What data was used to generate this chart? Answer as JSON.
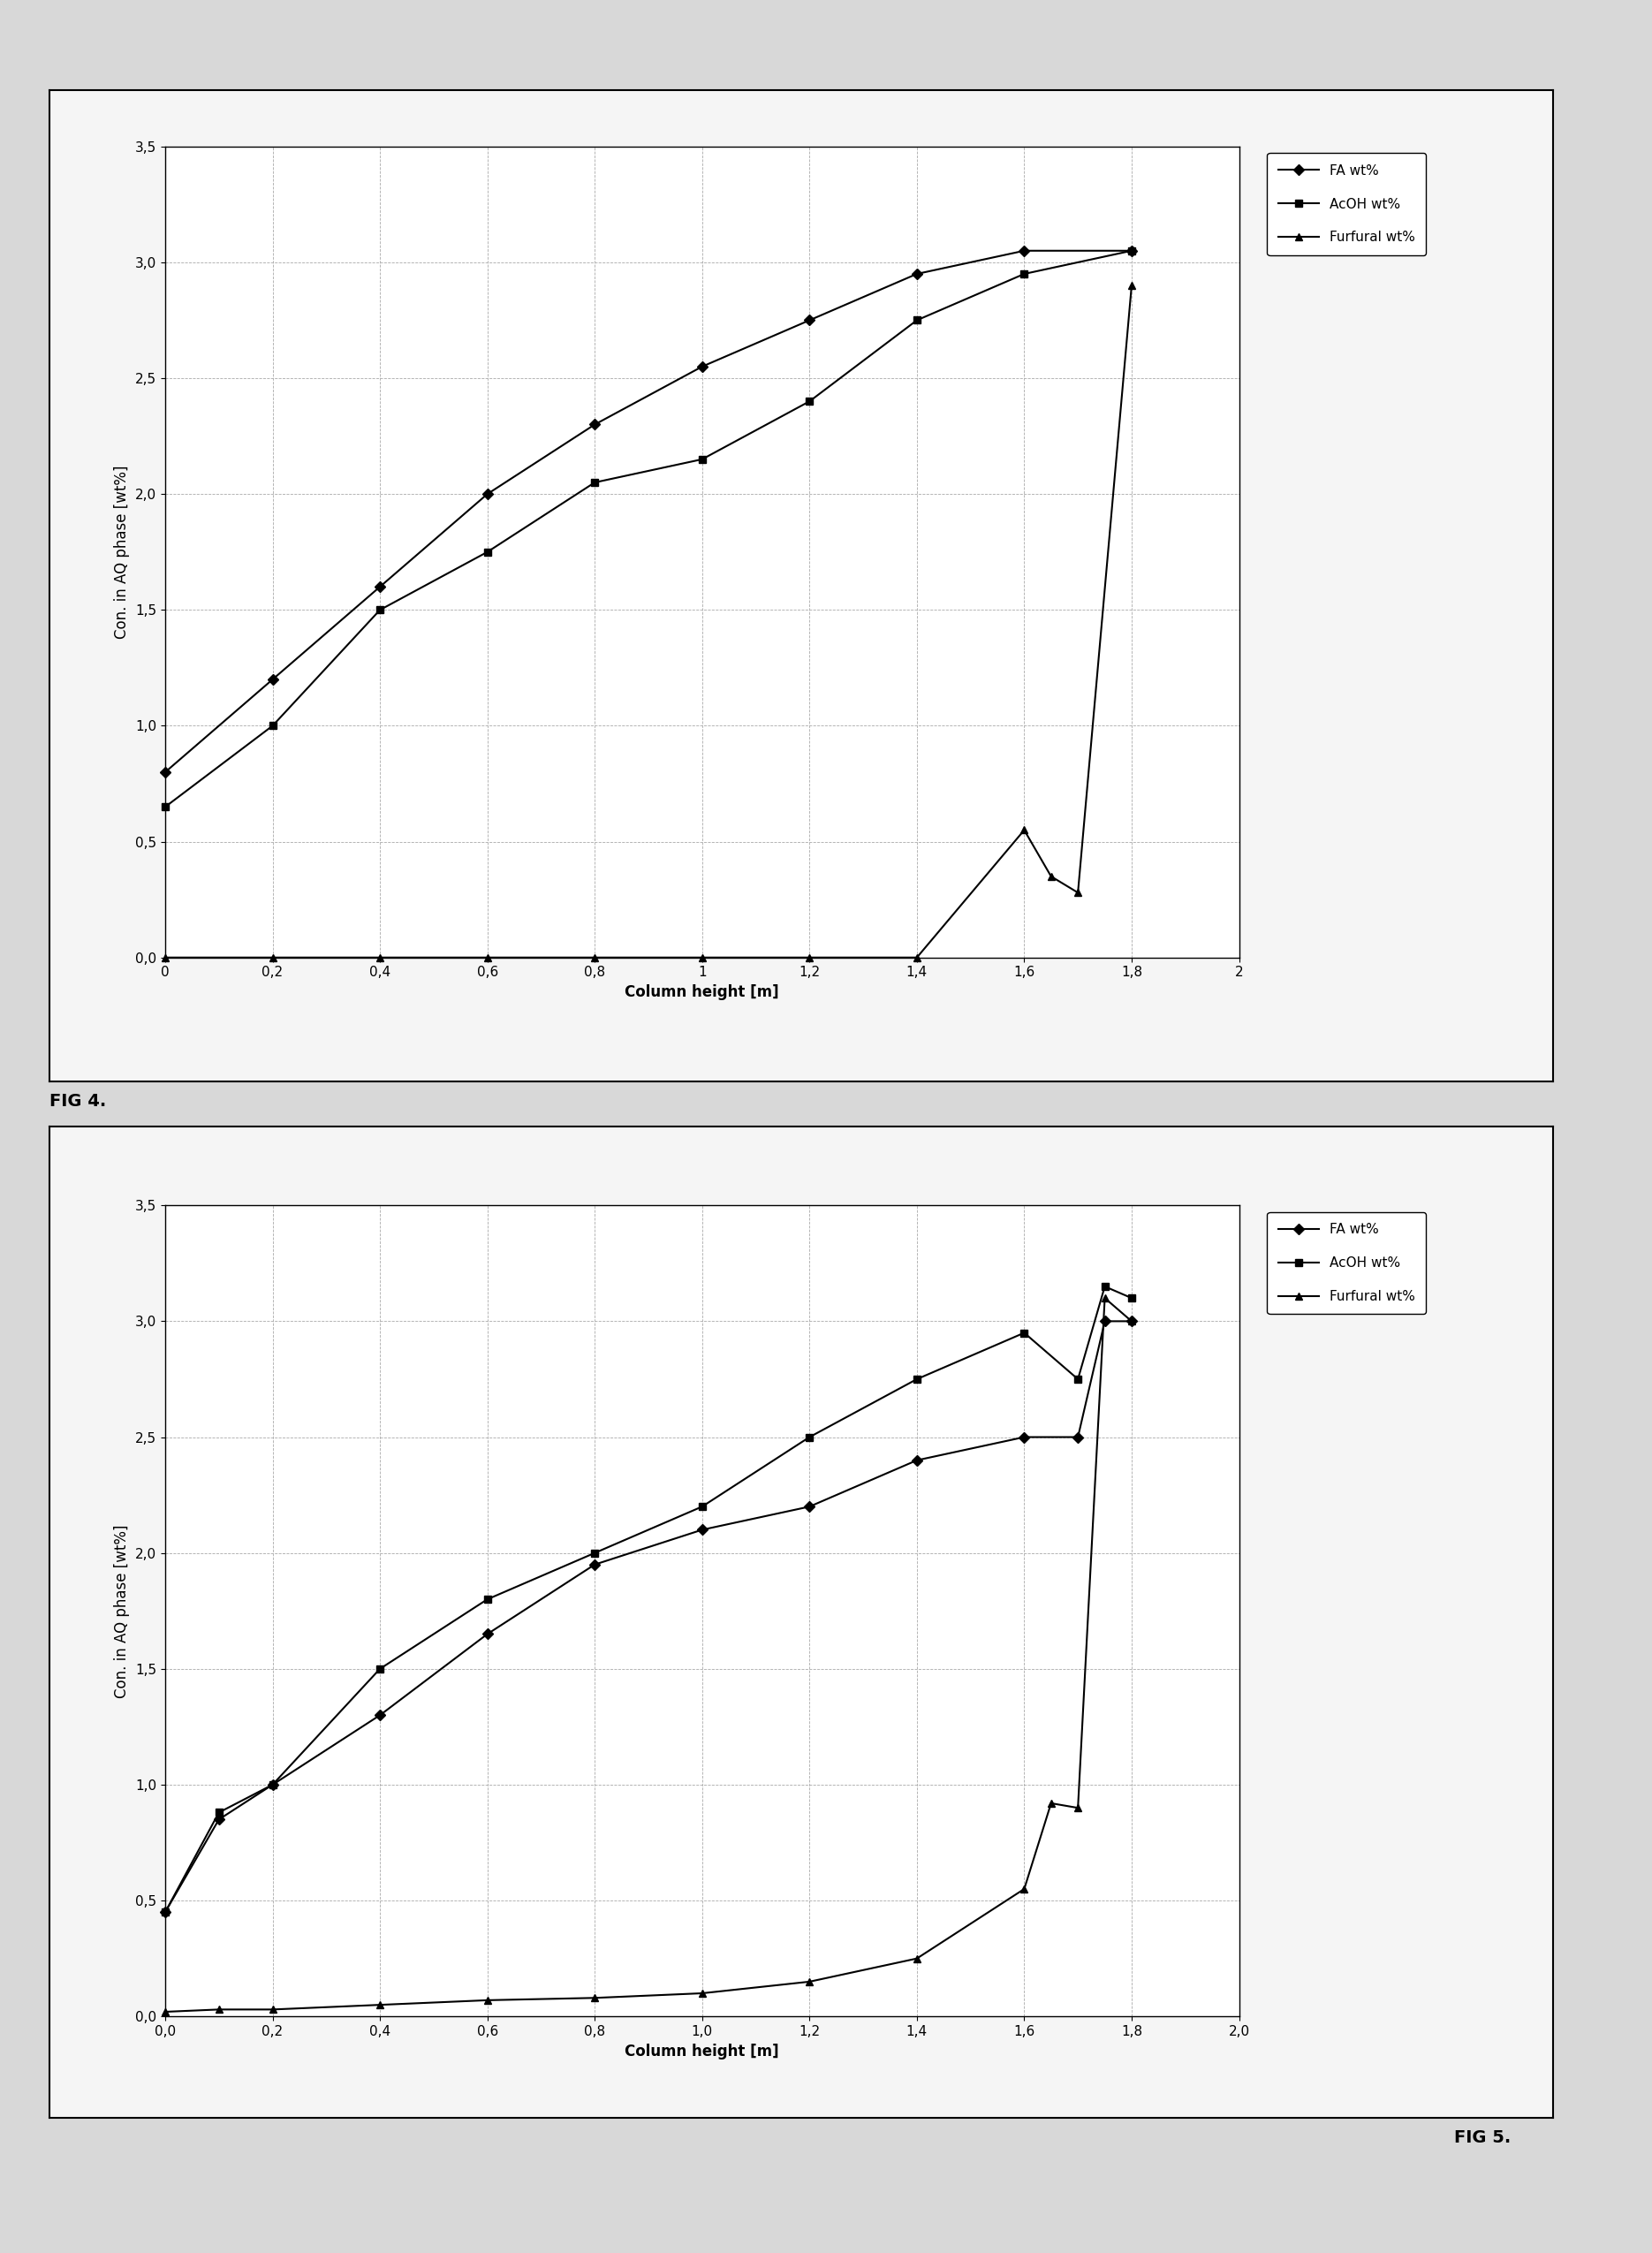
{
  "fig4": {
    "xlabel": "Column height [m]",
    "ylabel": "Con. in AQ phase [wt%]",
    "xlim": [
      0,
      2
    ],
    "ylim": [
      0,
      3.5
    ],
    "xticks": [
      0,
      0.2,
      0.4,
      0.6,
      0.8,
      1.0,
      1.2,
      1.4,
      1.6,
      1.8,
      2.0
    ],
    "yticks": [
      0.0,
      0.5,
      1.0,
      1.5,
      2.0,
      2.5,
      3.0,
      3.5
    ],
    "ytick_labels": [
      "0,0",
      "0,5",
      "1,0",
      "1,5",
      "2,0",
      "2,5",
      "3,0",
      "3,5"
    ],
    "xtick_labels": [
      "0",
      "0,2",
      "0,4",
      "0,6",
      "0,8",
      "1",
      "1,2",
      "1,4",
      "1,6",
      "1,8",
      "2"
    ],
    "FA": {
      "x": [
        0,
        0.2,
        0.4,
        0.6,
        0.8,
        1.0,
        1.2,
        1.4,
        1.6,
        1.8
      ],
      "y": [
        0.8,
        1.2,
        1.6,
        2.0,
        2.3,
        2.55,
        2.75,
        2.95,
        3.05,
        3.05
      ],
      "label": "FA wt%",
      "marker": "D"
    },
    "AcOH": {
      "x": [
        0,
        0.2,
        0.4,
        0.6,
        0.8,
        1.0,
        1.2,
        1.4,
        1.6,
        1.8
      ],
      "y": [
        0.65,
        1.0,
        1.5,
        1.75,
        2.05,
        2.15,
        2.4,
        2.75,
        2.95,
        3.05
      ],
      "label": "AcOH wt%",
      "marker": "s"
    },
    "Furfural": {
      "x": [
        0,
        0.2,
        0.4,
        0.6,
        0.8,
        1.0,
        1.2,
        1.4,
        1.6,
        1.65,
        1.7,
        1.8
      ],
      "y": [
        0.0,
        0.0,
        0.0,
        0.0,
        0.0,
        0.0,
        0.0,
        0.0,
        0.55,
        0.35,
        0.28,
        2.9
      ],
      "label": "Furfural wt%",
      "marker": "^"
    }
  },
  "fig5": {
    "xlabel": "Column height [m]",
    "ylabel": "Con. in AQ phase [wt%]",
    "xlim": [
      0.0,
      2.0
    ],
    "ylim": [
      0.0,
      3.5
    ],
    "xticks": [
      0.0,
      0.2,
      0.4,
      0.6,
      0.8,
      1.0,
      1.2,
      1.4,
      1.6,
      1.8,
      2.0
    ],
    "yticks": [
      0.0,
      0.5,
      1.0,
      1.5,
      2.0,
      2.5,
      3.0,
      3.5
    ],
    "ytick_labels": [
      "0,0",
      "0,5",
      "1,0",
      "1,5",
      "2,0",
      "2,5",
      "3,0",
      "3,5"
    ],
    "xtick_labels": [
      "0,0",
      "0,2",
      "0,4",
      "0,6",
      "0,8",
      "1,0",
      "1,2",
      "1,4",
      "1,6",
      "1,8",
      "2,0"
    ],
    "FA": {
      "x": [
        0,
        0.1,
        0.2,
        0.4,
        0.6,
        0.8,
        1.0,
        1.2,
        1.4,
        1.6,
        1.7,
        1.75,
        1.8
      ],
      "y": [
        0.45,
        0.85,
        1.0,
        1.3,
        1.65,
        1.95,
        2.1,
        2.2,
        2.4,
        2.5,
        2.5,
        3.0,
        3.0
      ],
      "label": "FA wt%",
      "marker": "D"
    },
    "AcOH": {
      "x": [
        0,
        0.1,
        0.2,
        0.4,
        0.6,
        0.8,
        1.0,
        1.2,
        1.4,
        1.6,
        1.7,
        1.75,
        1.8
      ],
      "y": [
        0.45,
        0.88,
        1.0,
        1.5,
        1.8,
        2.0,
        2.2,
        2.5,
        2.75,
        2.95,
        2.75,
        3.15,
        3.1
      ],
      "label": "AcOH wt%",
      "marker": "s"
    },
    "Furfural": {
      "x": [
        0,
        0.1,
        0.2,
        0.4,
        0.6,
        0.8,
        1.0,
        1.2,
        1.4,
        1.6,
        1.65,
        1.7,
        1.75,
        1.8
      ],
      "y": [
        0.02,
        0.03,
        0.03,
        0.05,
        0.07,
        0.08,
        0.1,
        0.15,
        0.25,
        0.55,
        0.92,
        0.9,
        3.1,
        3.0
      ],
      "label": "Furfural wt%",
      "marker": "^"
    }
  },
  "fig4_label": "FIG 4.",
  "fig5_label": "FIG 5.",
  "outer_bg": "#d8d8d8",
  "inner_bg": "#f5f5f5",
  "plot_bg": "#ffffff",
  "line_color": "#000000",
  "grid_color": "#aaaaaa",
  "font_size_tick": 11,
  "font_size_label": 12,
  "font_size_legend": 11,
  "font_size_fig_label": 14,
  "marker_size": 6,
  "line_width": 1.5
}
